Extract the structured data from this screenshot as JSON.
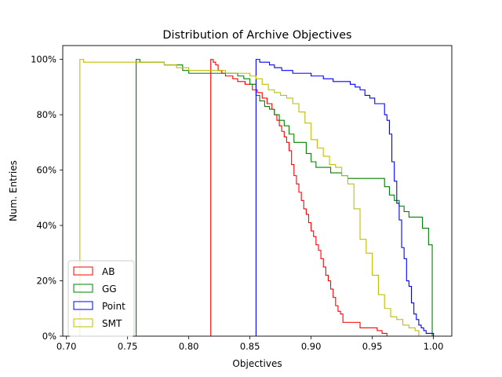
{
  "chart_data": {
    "type": "step",
    "title": "Distribution of Archive Objectives",
    "xlabel": "Objectives",
    "ylabel": "Num. Entries",
    "xlim": [
      0.697,
      1.015
    ],
    "ylim": [
      0,
      105
    ],
    "x_ticks": [
      0.7,
      0.75,
      0.8,
      0.85,
      0.9,
      0.95,
      1.0
    ],
    "x_tick_labels": [
      "0.70",
      "0.75",
      "0.80",
      "0.85",
      "0.90",
      "0.95",
      "1.00"
    ],
    "y_ticks": [
      0,
      20,
      40,
      60,
      80,
      100
    ],
    "y_tick_labels": [
      "0%",
      "20%",
      "40%",
      "60%",
      "80%",
      "100%"
    ],
    "grid": false,
    "legend_position": "lower-left",
    "series": [
      {
        "name": "AB",
        "color": "#ff0000",
        "x": [
          0.818,
          0.82,
          0.822,
          0.824,
          0.827,
          0.83,
          0.836,
          0.84,
          0.846,
          0.852,
          0.856,
          0.86,
          0.864,
          0.868,
          0.87,
          0.872,
          0.874,
          0.876,
          0.878,
          0.88,
          0.882,
          0.884,
          0.886,
          0.888,
          0.89,
          0.892,
          0.894,
          0.896,
          0.898,
          0.9,
          0.902,
          0.904,
          0.906,
          0.908,
          0.91,
          0.912,
          0.914,
          0.916,
          0.918,
          0.92,
          0.922,
          0.924,
          0.926,
          0.928,
          0.93,
          0.932,
          0.934,
          0.936,
          0.938,
          0.94,
          0.95,
          0.952,
          0.954,
          0.956,
          0.958,
          0.962
        ],
        "y": [
          100,
          99,
          98,
          96,
          95,
          94,
          93,
          92,
          91,
          89,
          88,
          86,
          84,
          82,
          80,
          78,
          76,
          74,
          72,
          70,
          67,
          62,
          58,
          55,
          52,
          49,
          46,
          44,
          41,
          38,
          36,
          33,
          31,
          28,
          25,
          22,
          20,
          17,
          14,
          11,
          9,
          8,
          5,
          5,
          5,
          5,
          5,
          5,
          5,
          3,
          3,
          3,
          2,
          2,
          1,
          0
        ]
      },
      {
        "name": "GG",
        "color": "#008000",
        "x": [
          0.757,
          0.76,
          0.772,
          0.78,
          0.795,
          0.8,
          0.81,
          0.825,
          0.84,
          0.845,
          0.85,
          0.855,
          0.858,
          0.862,
          0.866,
          0.87,
          0.874,
          0.878,
          0.882,
          0.886,
          0.892,
          0.896,
          0.9,
          0.904,
          0.91,
          0.916,
          0.92,
          0.925,
          0.93,
          0.935,
          0.96,
          0.964,
          0.968,
          0.972,
          0.976,
          0.98,
          0.985,
          0.991,
          0.996,
          0.999
        ],
        "y": [
          100,
          99,
          99,
          98,
          96,
          95,
          95,
          95,
          94,
          93,
          91,
          87,
          85,
          83,
          82,
          80,
          78,
          76,
          73,
          70,
          70,
          66,
          63,
          61,
          61,
          59,
          59,
          58,
          57,
          57,
          54,
          51,
          49,
          47,
          45,
          43,
          43,
          39,
          33,
          0
        ]
      },
      {
        "name": "Point",
        "color": "#0000ff",
        "x": [
          0.855,
          0.858,
          0.862,
          0.866,
          0.87,
          0.876,
          0.88,
          0.885,
          0.89,
          0.9,
          0.905,
          0.91,
          0.918,
          0.926,
          0.932,
          0.936,
          0.94,
          0.944,
          0.948,
          0.952,
          0.956,
          0.96,
          0.962,
          0.964,
          0.966,
          0.968,
          0.97,
          0.972,
          0.974,
          0.976,
          0.978,
          0.98,
          0.982,
          0.984,
          0.986,
          0.988,
          0.99,
          0.992,
          0.994,
          0.996,
          1.0
        ],
        "y": [
          100,
          99,
          99,
          98,
          97,
          96,
          96,
          95,
          95,
          94,
          94,
          93,
          92,
          92,
          91,
          90,
          89,
          87,
          86,
          84,
          84,
          80,
          78,
          73,
          63,
          56,
          48,
          42,
          32,
          28,
          20,
          18,
          12,
          8,
          6,
          4,
          3,
          2,
          1,
          1,
          0
        ]
      },
      {
        "name": "SMT",
        "color": "#bfbf00",
        "x": [
          0.711,
          0.714,
          0.72,
          0.73,
          0.74,
          0.75,
          0.76,
          0.77,
          0.78,
          0.79,
          0.8,
          0.81,
          0.82,
          0.83,
          0.84,
          0.85,
          0.855,
          0.86,
          0.865,
          0.87,
          0.875,
          0.88,
          0.885,
          0.89,
          0.895,
          0.9,
          0.905,
          0.91,
          0.915,
          0.92,
          0.925,
          0.93,
          0.935,
          0.94,
          0.945,
          0.95,
          0.955,
          0.96,
          0.965,
          0.97,
          0.975,
          0.98,
          0.985,
          0.988
        ],
        "y": [
          100,
          99,
          99,
          99,
          99,
          99,
          99,
          99,
          98,
          97,
          96,
          96,
          96,
          95,
          95,
          94,
          93,
          91,
          89,
          88,
          87,
          86,
          84,
          81,
          77,
          71,
          68,
          65,
          62,
          61,
          58,
          55,
          46,
          35,
          30,
          22,
          15,
          10,
          7,
          6,
          4,
          3,
          2,
          0
        ]
      }
    ]
  }
}
